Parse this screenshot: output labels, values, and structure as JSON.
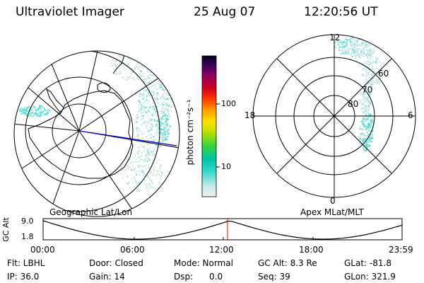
{
  "header": {
    "instrument": "Ultraviolet Imager",
    "date": "25 Aug 07",
    "time": "12:20:56 UT"
  },
  "colorbar": {
    "label": "photon cm⁻²s⁻¹",
    "ticks": [
      "100",
      "10"
    ]
  },
  "left_panel": {
    "caption": "Geographic Lat/Lon"
  },
  "right_panel": {
    "caption": "Apex MLat/MLT",
    "mlt_labels": {
      "top": "12",
      "left": "18",
      "right": "6",
      "bottom": "0"
    },
    "lat_labels": [
      "60",
      "70",
      "80"
    ]
  },
  "orbit": {
    "axis_label": "GC Alt",
    "y_ticks": [
      "9.0",
      "1.8"
    ],
    "x_ticks": [
      "00:00",
      "06:00",
      "12:00",
      "18:00",
      "23:59"
    ],
    "marker_color": "#ff0000"
  },
  "status": {
    "row1": [
      {
        "key": "Flt: LBHL"
      },
      {
        "key": "Door: Closed"
      },
      {
        "key": "Mode: Normal"
      },
      {
        "key": "GC Alt: 8.3 Re"
      },
      {
        "key": "GLat: -81.8"
      }
    ],
    "row2": [
      {
        "key": "IP: 36.0"
      },
      {
        "key": "Gain: 14"
      },
      {
        "key": "Dsp:",
        "value": "0.0"
      },
      {
        "key": "Seq: 39"
      },
      {
        "key": "GLon: 321.9"
      }
    ]
  },
  "colors": {
    "aurora_cyan": "#55e0d8",
    "aurora_pale": "#c9e6e2",
    "sun_line": "#0000cc"
  }
}
